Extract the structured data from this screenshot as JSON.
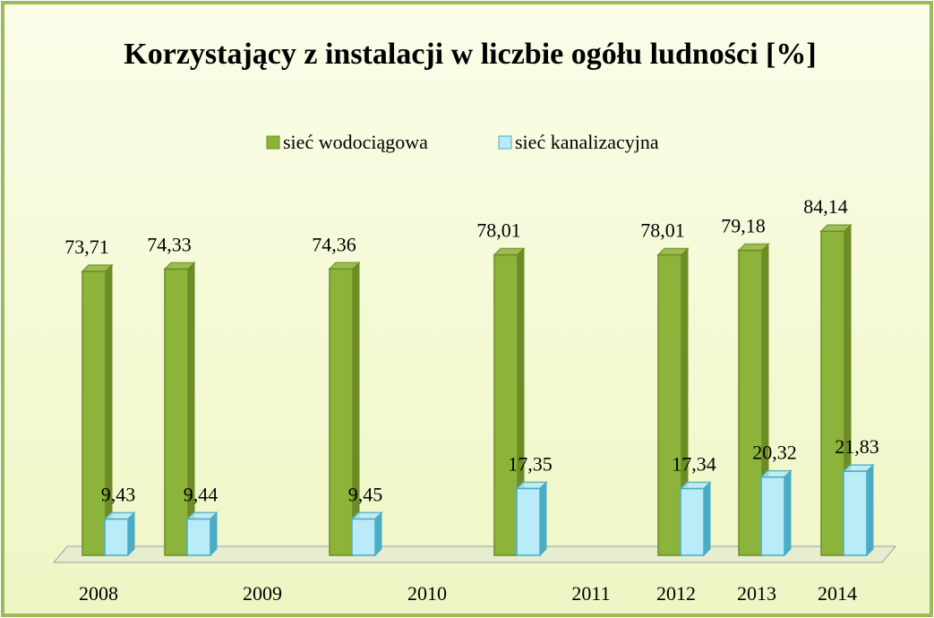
{
  "chart_data": {
    "type": "bar",
    "title": "Korzystający z instalacji w liczbie ogółu ludności [%]",
    "categories": [
      "2008",
      "2009",
      "2010",
      "2011",
      "2012",
      "2013",
      "2014"
    ],
    "series": [
      {
        "name": "sieć wodociągowa",
        "color": "#8db43a",
        "values": [
          73.71,
          74.33,
          74.36,
          78.01,
          78.01,
          79.18,
          84.14
        ],
        "value_labels": [
          "73,71",
          "74,33",
          "74,36",
          "78,01",
          "78,01",
          "79,18",
          "84,14"
        ]
      },
      {
        "name": "sieć kanalizacyjna",
        "color": "#b9ebf8",
        "values": [
          9.43,
          9.44,
          9.45,
          17.35,
          17.34,
          20.32,
          21.83
        ],
        "value_labels": [
          "9,43",
          "9,44",
          "9,45",
          "17,35",
          "17,34",
          "20,32",
          "21,83"
        ]
      }
    ]
  }
}
